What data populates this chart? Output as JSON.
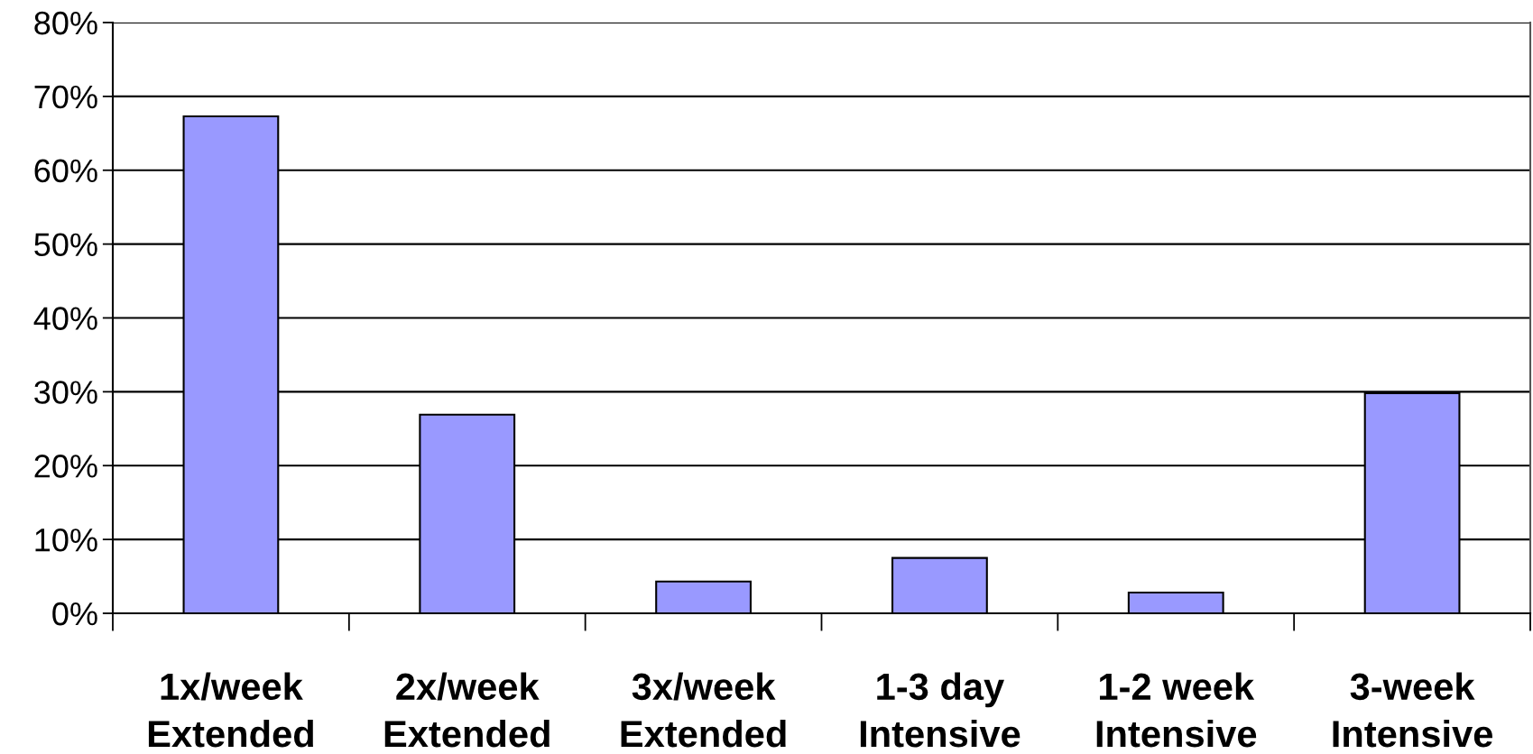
{
  "chart_data": {
    "type": "bar",
    "categories": [
      "1x/week\nExtended",
      "2x/week\nExtended",
      "3x/week\nExtended",
      "1-3 day\nIntensive",
      "1-2 week\nIntensive",
      "3-week\nIntensive"
    ],
    "values": [
      67.3,
      26.9,
      4.3,
      7.5,
      2.8,
      29.8
    ],
    "color": "#9999ff",
    "ylim": [
      0,
      80
    ],
    "yticks": [
      {
        "value": 0,
        "label": "0%"
      },
      {
        "value": 10,
        "label": "10%"
      },
      {
        "value": 20,
        "label": "20%"
      },
      {
        "value": 30,
        "label": "30%"
      },
      {
        "value": 40,
        "label": "40%"
      },
      {
        "value": 50,
        "label": "50%"
      },
      {
        "value": 60,
        "label": "60%"
      },
      {
        "value": 70,
        "label": "70%"
      },
      {
        "value": 80,
        "label": "80%"
      }
    ],
    "grid": "y"
  }
}
